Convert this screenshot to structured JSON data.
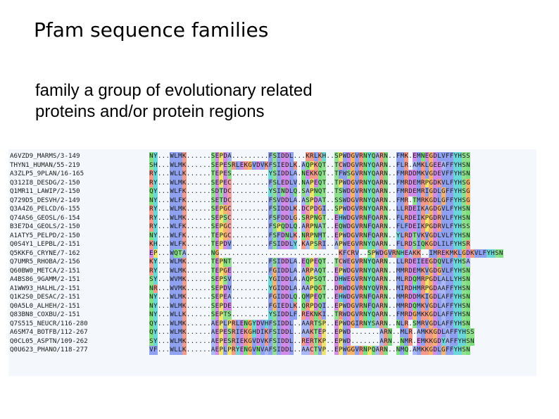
{
  "slide": {
    "title": "Pfam sequence families",
    "subtitle_line1": "family a group of evolutionary related",
    "subtitle_line2": "proteins and/or protein regions"
  },
  "alignment": {
    "names": [
      "A6VZD9_MARMS/3-149",
      "THYN1_HUMAN/55-219",
      "A3ZLP5_9PLAN/16-165",
      "Q312I8_DESDG/2-150",
      "Q1MR11_LAWIP/2-150",
      "Q729D5_DESVH/2-149",
      "Q3A4Z6_PELCD/6-155",
      "Q74AS6_GEOSL/6-154",
      "B3E7D4_GEOLS/2-150",
      "A1ATY5_PELPD/2-150",
      "Q0S4Y1_LEPBL/2-151",
      "Q5KKF6_CRYNE/7-162",
      "Q7UMR5_RHOBA/2-156",
      "Q60BW0_METCA/2-151",
      "A4BS86_9GAMM/2-151",
      "A1WW93_HALHL/2-151",
      "Q1K2S0_DESAC/2-151",
      "Q0A5L0_ALHEH/2-151",
      "Q83BN8_COXBU/2-151",
      "Q7S515_NEUCR/116-280",
      "A6SM74_BOTFB/112-267",
      "Q0CL05_ASPTN/109-262",
      "Q0U623_PHANO/118-277"
    ],
    "sequences": [
      "NY...WLMK......SEPDA.........FSIDDL...KRLKH..SPWDGVRNYQARN..FMK.EMNEGDLVFFYHSS",
      "SH...WLMK......SEPESRLEKGVDVKFSIEDLK.AQPKQT..TCWDGVRNYQARN..FLR.AMKLGEEAFFYHSN",
      "RY...WLLK......TEPES.........YSIDDLA.NEKKQT..TFWSGVRNYQARN..FMRDDMKVGDEVFFYHSN",
      "RY...WLMK......SEPEC.........FSLEDLV.NAPEQT..TPWDGVRNYQARN..FMRDEMRPGDKVLFYHSG",
      "QY...WLFK......SDTDC.........YSINDLQ.SAPNQT..TSWDGVRNYQARN..FMRDEMRIGDLGFFYHSG",
      "NY...WLFK......SETDC.........FSVDDLA.ASPDAT..SSWDGVRNYQARN..FMR.TMRKGDLGFFYHSG",
      "RY...WLMK......SEPGC.........FSIDDLK.DCPDGI..SPWDGVRNYQARN..LLRDEIKAGDGVLFYHSN",
      "RY...WLMK......SEPSC.........FSFDDLG.SRPNGT..EHWDGVRNFQARN..FLRDEIKPGDRVLFYHSN",
      "RY...WLFK......SEPGC.........FSPQDLQ.ARPNAT..EQWDGVRNFQARN..FLFDEIKPGDRVLFYHSS",
      "NY...WLFK......TEPGC.........FSFDNLK.NRPNMT..EPWDGVRNFQARN..YLRDTVKVGDLVLFYHSN",
      "KH...WLFK......TEPDV.........FSIDDLY.KAPSRI..APWEGVRNYQARN..FLRDSIQKGDLILFYHSR",
      "EP...WQTA......NG.............................KFCRV..SPWDGVRNHEAKK..IMREKMKLGDKVLFYHSN",
      "KY...WLMK......TEPNT.........FSIDDLA.EQPEQT..TCWEGVRNYQARN..LLRDEIEEGDQVLFYHSA",
      "RY...WLMK......TEPGE.........FGIDDLA.ARPAQT..EPWDGVRNYQARN..MMRDEMKVGDGVLFYHSN",
      "SY...WVMK......SEPSV.........YGIDDLA.AQPSQT..DHWEGVRNYQARN..MLRDQMRPGDLALLYHSN",
      "NR...WVMK......SEPDV.........YGIDDLA.AAPQGT..DRWDGVRNYQVRN..MIRDHMRPGDAAFFYHSN",
      "NY...WLMK......SEPEA.........FGIDDLQ.QMPEQT..EHWDGVRNFQARN..MMRDDMKIGDLAFFYHSN",
      "NY...WLMK......SEPDE.........FGIEDLK.QRPDQI..EPWDGVRNFQARN..MMRDQMKVGDLAFFYHSN",
      "NY...WLLK......SEPTS.........YSIDDLF.REKNKI..TRWDGVRNYQARN..FMRDGMKKGDLAFFYHSN",
      "QY...WLMK......AEPLPRLENGYDVHFSIDDL..AARTSP..EPWDGIRNYSARN..NLR.SMRVGDLAFFYHSN",
      "QY...WLMK......AEPESRIEKGHDIKFSIDDL..AAKTEP..EPWD.......ARN..MLR.AMKKGDLAFFYHSS",
      "SY...WLMK......AEPESRIEKGVDVKFSIDDL..RERTKP..EPWD.......ARN..NMR.EMKKGDYAFFYHSN",
      "VF...WLLK......AEPLPRYENGVNVAFSIDDL..AACTVP..EPWGGVRNPQARN..NMQ.AMKKGDLGFFYHSN"
    ]
  }
}
